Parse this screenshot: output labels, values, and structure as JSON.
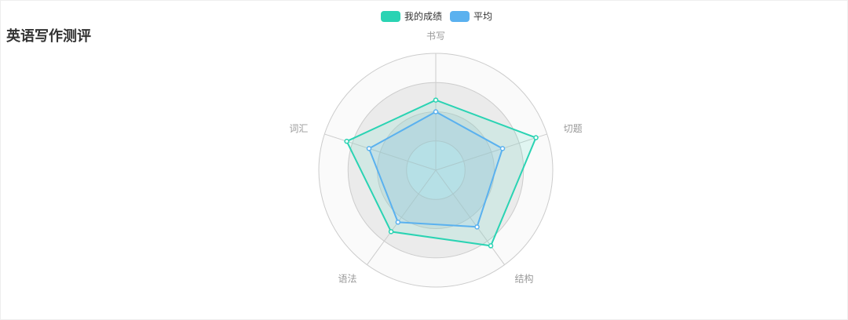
{
  "page": {
    "title": "英语写作测评"
  },
  "chart_data": {
    "type": "radar",
    "indicators": [
      "书写",
      "切题",
      "结构",
      "语法",
      "词汇"
    ],
    "max": 100,
    "series": [
      {
        "name": "我的成绩",
        "values": [
          60,
          90,
          80,
          65,
          80
        ],
        "color": "#2ad3b3"
      },
      {
        "name": "平均",
        "values": [
          50,
          60,
          60,
          55,
          60
        ],
        "color": "#5ab1ef"
      }
    ],
    "split_number": 4,
    "split_area_colors": [
      "#d9e9ec",
      "#dbe1e3",
      "#ebebeb",
      "#fafafa"
    ],
    "axis_line_color": "#cccccc",
    "legend_position": "top-center"
  }
}
